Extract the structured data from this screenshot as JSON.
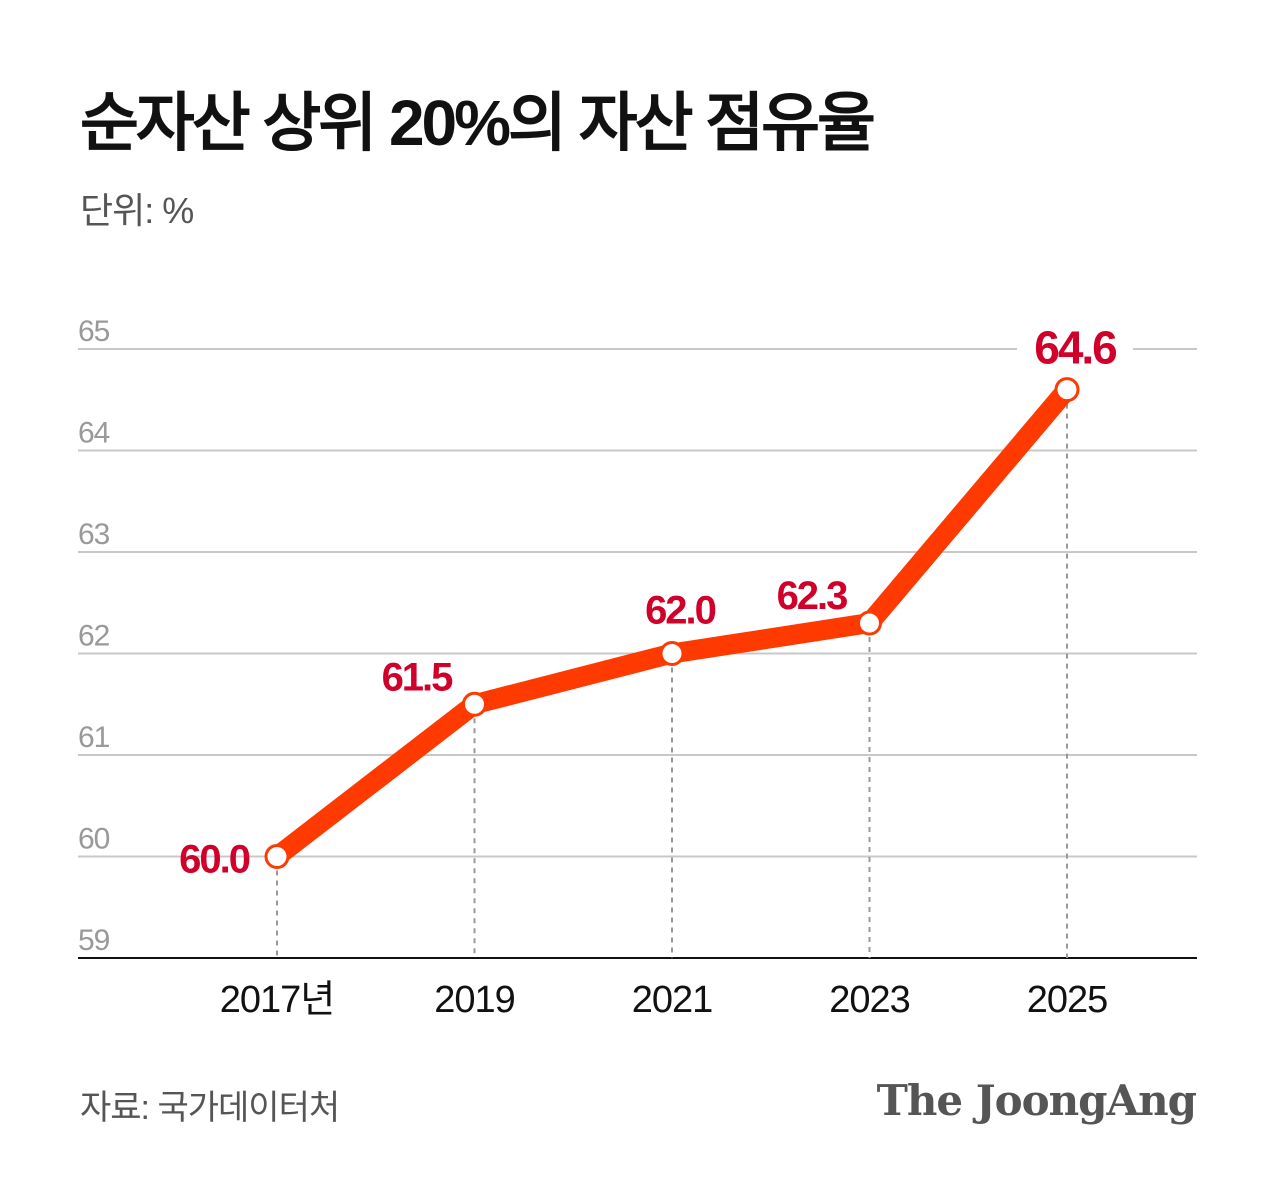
{
  "title": "순자산 상위 20%의 자산 점유율",
  "unit_label": "단위: %",
  "source": "자료: 국가데이터처",
  "logo": "The JoongAng",
  "colors": {
    "line": "#ff3a00",
    "data_label": "#d0002a",
    "grid": "#c8c8c8",
    "axis_tick": "#999999"
  },
  "chart_data": {
    "type": "line",
    "title": "순자산 상위 20%의 자산 점유율",
    "ylabel": "단위: %",
    "categories": [
      "2017년",
      "2019",
      "2021",
      "2023",
      "2025"
    ],
    "values": [
      60.0,
      61.5,
      62.0,
      62.3,
      64.6
    ],
    "data_labels": [
      "60.0",
      "61.5",
      "62.0",
      "62.3",
      "64.6"
    ],
    "label_placement": [
      "left",
      "above-left",
      "above",
      "above-left",
      "above"
    ],
    "yticks": [
      "59",
      "60",
      "61",
      "62",
      "63",
      "64",
      "65"
    ],
    "ylim": [
      59,
      65
    ],
    "grid": true,
    "legend": "none"
  }
}
